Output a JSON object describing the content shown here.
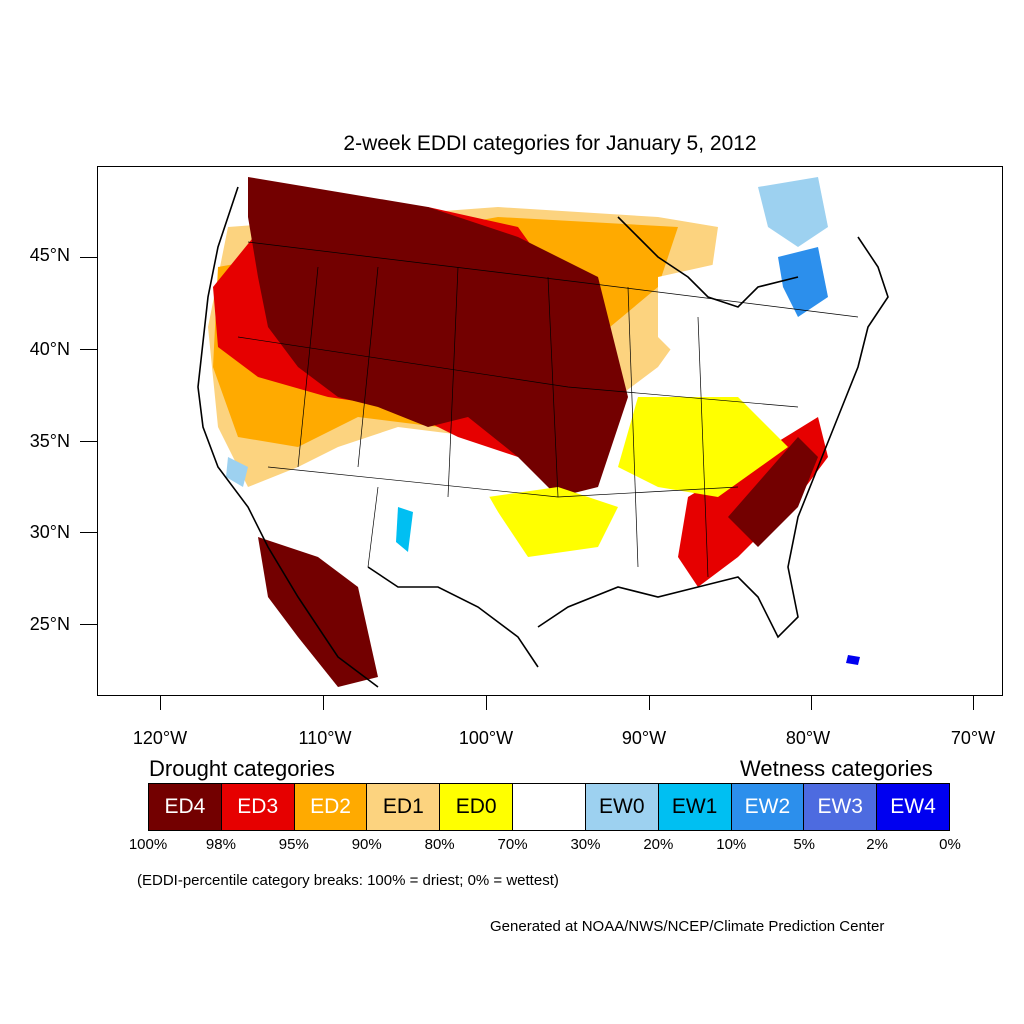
{
  "title": "2-week EDDI categories for January 5, 2012",
  "lat_labels": [
    "45°N",
    "40°N",
    "35°N",
    "30°N",
    "25°N"
  ],
  "lon_labels": [
    "120°W",
    "110°W",
    "100°W",
    "90°W",
    "80°W",
    "70°W"
  ],
  "legend": {
    "drought_heading": "Drought categories",
    "wetness_heading": "Wetness categories",
    "categories": [
      {
        "label": "ED4",
        "color": "#730000",
        "text_color": "#ffffff"
      },
      {
        "label": "ED3",
        "color": "#e60000",
        "text_color": "#ffffff"
      },
      {
        "label": "ED2",
        "color": "#ffaa00",
        "text_color": "#ffffff"
      },
      {
        "label": "ED1",
        "color": "#fcd37f",
        "text_color": "#000000"
      },
      {
        "label": "ED0",
        "color": "#ffff00",
        "text_color": "#000000"
      },
      {
        "label": "",
        "color": "#ffffff",
        "text_color": "#000000"
      },
      {
        "label": "EW0",
        "color": "#9dd1f0",
        "text_color": "#000000"
      },
      {
        "label": "EW1",
        "color": "#00bff2",
        "text_color": "#000000"
      },
      {
        "label": "EW2",
        "color": "#2c8fec",
        "text_color": "#ffffff"
      },
      {
        "label": "EW3",
        "color": "#4d6be0",
        "text_color": "#ffffff"
      },
      {
        "label": "EW4",
        "color": "#0000f0",
        "text_color": "#ffffff"
      }
    ],
    "percentile_breaks": [
      "100%",
      "98%",
      "95%",
      "90%",
      "80%",
      "70%",
      "30%",
      "20%",
      "10%",
      "5%",
      "2%",
      "0%"
    ]
  },
  "note": "(EDDI-percentile category breaks: 100% = driest; 0% = wettest)",
  "credit": "Generated at NOAA/NWS/NCEP/Climate Prediction Center"
}
